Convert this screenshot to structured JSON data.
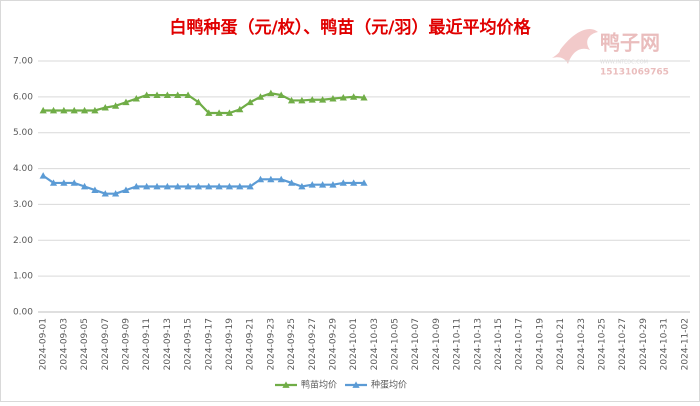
{
  "chart_data": {
    "type": "line",
    "title": "白鸭种蛋（元/枚）、鸭苗（元/羽）最近平均价格",
    "watermark": {
      "name": "鸭子网",
      "site": "WWW.INTEDC.COM",
      "phone": "15131069765"
    },
    "categories": [
      "2024-09-01",
      null,
      "2024-09-03",
      null,
      "2024-09-05",
      null,
      "2024-09-07",
      null,
      "2024-09-09",
      null,
      "2024-09-11",
      null,
      "2024-09-13",
      null,
      "2024-09-15",
      null,
      "2024-09-17",
      null,
      "2024-09-19",
      null,
      "2024-09-21",
      null,
      "2024-09-23",
      null,
      "2024-09-25",
      null,
      "2024-09-27",
      null,
      "2024-09-29",
      null,
      "2024-10-01",
      null,
      "2024-10-03",
      null,
      "2024-10-05",
      null,
      "2024-10-07",
      null,
      "2024-10-09",
      null,
      "2024-10-11",
      null,
      "2024-10-13",
      null,
      "2024-10-15",
      null,
      "2024-10-17",
      null,
      "2024-10-19",
      null,
      "2024-10-21",
      null,
      "2024-10-23",
      null,
      "2024-10-25",
      null,
      "2024-10-27",
      null,
      "2024-10-29",
      null,
      "2024-10-31",
      null,
      "2024-11-02"
    ],
    "series": [
      {
        "name": "鸭苗均价",
        "color": "#70ad47",
        "values": [
          5.62,
          5.62,
          5.62,
          5.62,
          5.62,
          5.62,
          5.7,
          5.75,
          5.85,
          5.95,
          6.05,
          6.05,
          6.05,
          6.05,
          6.05,
          5.85,
          5.55,
          5.55,
          5.55,
          5.65,
          5.85,
          6.0,
          6.1,
          6.05,
          5.9,
          5.9,
          5.92,
          5.92,
          5.95,
          5.98,
          6.0,
          5.98,
          null,
          null,
          null,
          null,
          null,
          null,
          null,
          null,
          null,
          null,
          null,
          null,
          null,
          null,
          null,
          null,
          null,
          null,
          null,
          null,
          null,
          null,
          null,
          null,
          null,
          null,
          null,
          null,
          null,
          null,
          null
        ]
      },
      {
        "name": "种蛋均价",
        "color": "#5b9bd5",
        "values": [
          3.8,
          3.6,
          3.6,
          3.6,
          3.5,
          3.4,
          3.3,
          3.3,
          3.4,
          3.5,
          3.5,
          3.5,
          3.5,
          3.5,
          3.5,
          3.5,
          3.5,
          3.5,
          3.5,
          3.5,
          3.5,
          3.7,
          3.7,
          3.7,
          3.6,
          3.5,
          3.55,
          3.55,
          3.55,
          3.6,
          3.6,
          3.6,
          null,
          null,
          null,
          null,
          null,
          null,
          null,
          null,
          null,
          null,
          null,
          null,
          null,
          null,
          null,
          null,
          null,
          null,
          null,
          null,
          null,
          null,
          null,
          null,
          null,
          null,
          null,
          null,
          null,
          null,
          null
        ]
      }
    ],
    "ylim": [
      0,
      7
    ],
    "yticks": [
      {
        "value": 0,
        "label": "0.00"
      },
      {
        "value": 1,
        "label": "1.00"
      },
      {
        "value": 2,
        "label": "2.00"
      },
      {
        "value": 3,
        "label": "3.00"
      },
      {
        "value": 4,
        "label": "4.00"
      },
      {
        "value": 5,
        "label": "5.00"
      },
      {
        "value": 6,
        "label": "6.00"
      },
      {
        "value": 7,
        "label": "7.00"
      }
    ],
    "grid": true,
    "legend": "bottom"
  }
}
